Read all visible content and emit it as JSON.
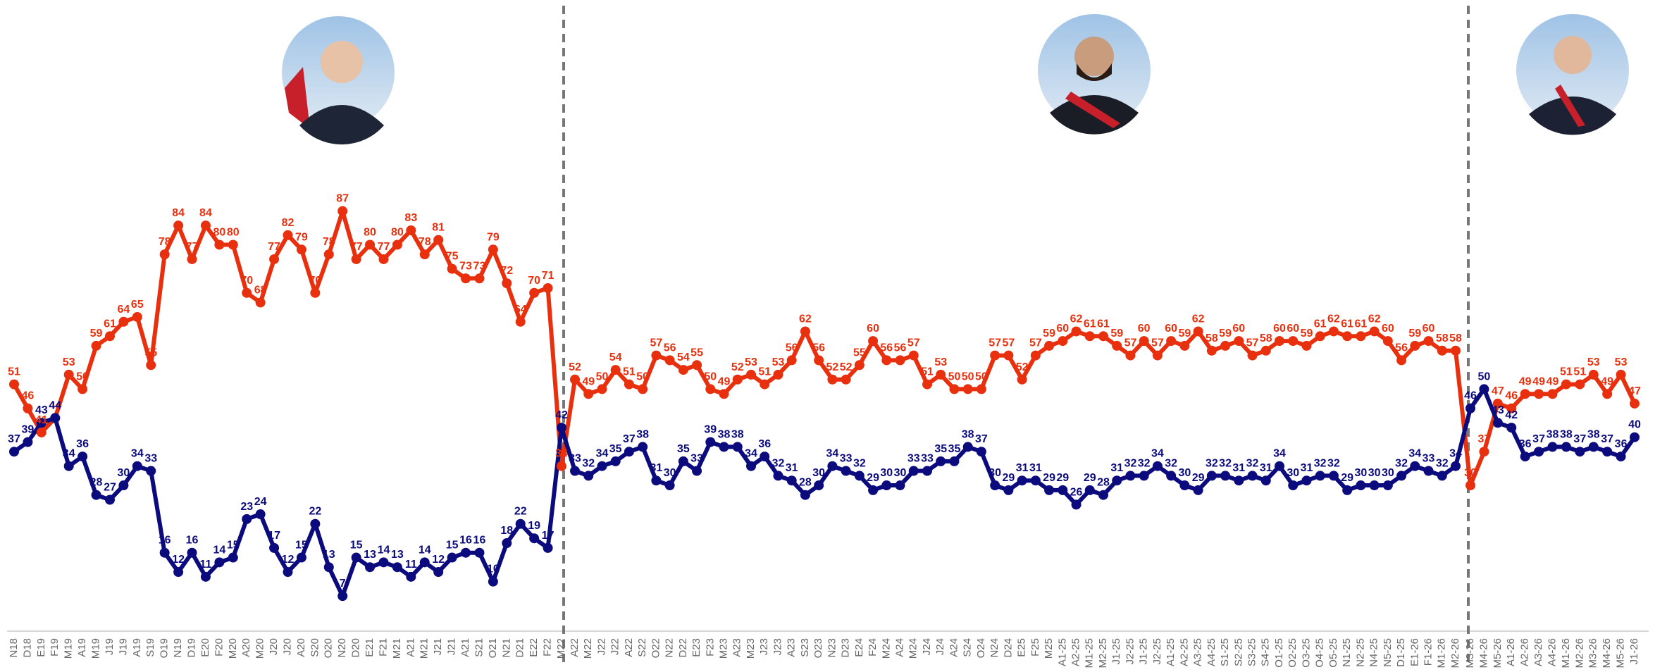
{
  "chart_data": [
    {
      "type": "line",
      "categories": [
        "N18",
        "D18",
        "E19",
        "F19",
        "M19",
        "A19",
        "M19",
        "J19",
        "J19",
        "A19",
        "S19",
        "O19",
        "N19",
        "D19",
        "E20",
        "F20",
        "M20",
        "A20",
        "M20",
        "J20",
        "J20",
        "A20",
        "S20",
        "O20",
        "N20",
        "D20",
        "E21",
        "F21",
        "M21",
        "A21",
        "M21",
        "J21",
        "J21",
        "A21",
        "S21",
        "O21",
        "N21",
        "D21",
        "E22",
        "F22",
        "M22"
      ],
      "series": [
        {
          "color": "#e8300e",
          "values": [
            51,
            46,
            41,
            44,
            53,
            50,
            59,
            61,
            64,
            65,
            55,
            78,
            84,
            77,
            84,
            80,
            80,
            70,
            68,
            77,
            82,
            79,
            70,
            78,
            87,
            77,
            80,
            77,
            80,
            83,
            78,
            81,
            75,
            73,
            73,
            79,
            72,
            64,
            70,
            71,
            34
          ]
        },
        {
          "color": "#0b0b7e",
          "values": [
            37,
            39,
            43,
            44,
            34,
            36,
            28,
            27,
            30,
            34,
            33,
            16,
            12,
            16,
            11,
            14,
            15,
            23,
            24,
            17,
            12,
            15,
            22,
            13,
            7,
            15,
            13,
            14,
            13,
            11,
            14,
            12,
            15,
            16,
            16,
            10,
            18,
            22,
            19,
            17,
            42
          ]
        }
      ],
      "ylim": [
        0,
        95
      ]
    },
    {
      "type": "line",
      "categories": [
        "A22",
        "M22",
        "J22",
        "J22",
        "A22",
        "S22",
        "O22",
        "N22",
        "D22",
        "E23",
        "F23",
        "M23",
        "A23",
        "M23",
        "J23",
        "J23",
        "A23",
        "S23",
        "O23",
        "N23",
        "D23",
        "E24",
        "F24",
        "M24",
        "A24",
        "M24",
        "J24",
        "J24",
        "A24",
        "S24",
        "O24",
        "N24",
        "D24",
        "E25",
        "F25",
        "M25",
        "A1-25",
        "A2-25",
        "M1-25",
        "M2-25",
        "J1-25",
        "J2-25",
        "J1-25",
        "J2-25",
        "A1-25",
        "A2-25",
        "A3-25",
        "A4-25",
        "S1-25",
        "S2-25",
        "S3-25",
        "S4-25",
        "O1-25",
        "O2-25",
        "O3-25",
        "O4-25",
        "O5-25",
        "N1-25",
        "N2-25",
        "N4-25",
        "N5-25",
        "D1-25",
        "E1-26",
        "F1-26",
        "M1-26",
        "M2-26"
      ],
      "series": [
        {
          "color": "#e8300e",
          "values": [
            52,
            49,
            50,
            54,
            51,
            50,
            57,
            56,
            54,
            55,
            50,
            49,
            52,
            53,
            51,
            53,
            56,
            62,
            56,
            52,
            52,
            55,
            60,
            56,
            56,
            57,
            51,
            53,
            50,
            50,
            50,
            57,
            57,
            52,
            57,
            59,
            60,
            62,
            61,
            61,
            59,
            57,
            60,
            57,
            60,
            59,
            62,
            58,
            59,
            60,
            57,
            58,
            60,
            60,
            59,
            61,
            62,
            61,
            61,
            62,
            60,
            56,
            59,
            60,
            58,
            58
          ]
        },
        {
          "color": "#0b0b7e",
          "values": [
            33,
            32,
            34,
            35,
            37,
            38,
            31,
            30,
            35,
            33,
            39,
            38,
            38,
            34,
            36,
            32,
            31,
            28,
            30,
            34,
            33,
            32,
            29,
            30,
            30,
            33,
            33,
            35,
            35,
            38,
            37,
            30,
            29,
            31,
            31,
            29,
            29,
            26,
            29,
            28,
            31,
            32,
            32,
            34,
            32,
            30,
            29,
            32,
            32,
            31,
            32,
            31,
            34,
            30,
            31,
            32,
            32,
            29,
            30,
            30,
            30,
            32,
            34,
            33,
            32,
            34
          ]
        }
      ],
      "ylim": [
        0,
        95
      ]
    },
    {
      "type": "line",
      "categories": [
        "M3-26",
        "M4-26",
        "M5-26",
        "A1-26",
        "A2-26",
        "A3-26",
        "A4-26",
        "M1-26",
        "M2-26",
        "M3-26",
        "M4-26",
        "M5-26",
        "J1-26"
      ],
      "series": [
        {
          "color": "#e8300e",
          "values": [
            30,
            37,
            47,
            46,
            49,
            49,
            49,
            51,
            51,
            53,
            49,
            53,
            47
          ]
        },
        {
          "color": "#0b0b7e",
          "values": [
            46,
            50,
            43,
            42,
            36,
            37,
            38,
            38,
            37,
            38,
            37,
            36,
            40
          ]
        }
      ],
      "ylim": [
        0,
        95
      ]
    }
  ]
}
